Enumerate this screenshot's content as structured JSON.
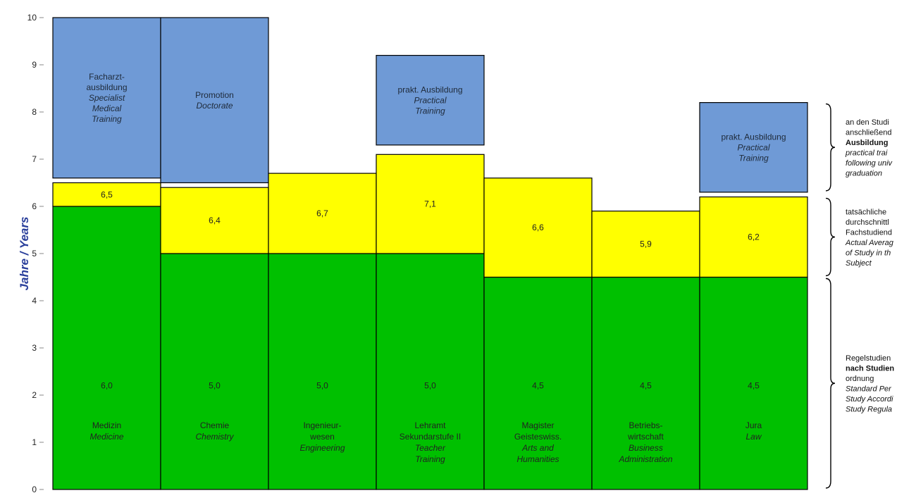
{
  "chart_data": {
    "type": "bar",
    "stacked": true,
    "ylabel": "Jahre / Years",
    "ylim": [
      0,
      10
    ],
    "yticks": [
      "0",
      "1",
      "2",
      "3",
      "4",
      "5",
      "6",
      "7",
      "8",
      "9",
      "10"
    ],
    "grid": false,
    "categories": [
      {
        "de": [
          "Medizin"
        ],
        "en": [
          "Medicine"
        ]
      },
      {
        "de": [
          "Chemie"
        ],
        "en": [
          "Chemistry"
        ]
      },
      {
        "de": [
          "Ingenieur-",
          "wesen"
        ],
        "en": [
          "Engineering"
        ]
      },
      {
        "de": [
          "Lehramt",
          "Sekundarstufe II"
        ],
        "en": [
          "Teacher",
          "Training"
        ]
      },
      {
        "de": [
          "Magister",
          "Geisteswiss."
        ],
        "en": [
          "Arts and",
          "Humanities"
        ]
      },
      {
        "de": [
          "Betriebs-",
          "wirtschaft"
        ],
        "en": [
          "Business",
          "Administration"
        ]
      },
      {
        "de": [
          "Jura"
        ],
        "en": [
          "Law"
        ]
      }
    ],
    "series": [
      {
        "key": "standard",
        "color": "#00c000",
        "values": [
          6.0,
          5.0,
          5.0,
          5.0,
          4.5,
          4.5,
          4.5
        ],
        "labels": [
          "6,0",
          "5,0",
          "5,0",
          "5,0",
          "4,5",
          "4,5",
          "4,5"
        ]
      },
      {
        "key": "actual",
        "color": "#ffff00",
        "totals": [
          6.5,
          6.4,
          6.7,
          7.1,
          6.6,
          5.9,
          6.2
        ],
        "labels": [
          "6,5",
          "6,4",
          "6,7",
          "7,1",
          "6,6",
          "5,9",
          "6,2"
        ]
      },
      {
        "key": "training",
        "color": "#6f9ad6",
        "ranges": [
          {
            "from": 6.6,
            "to": 10.0
          },
          {
            "from": 6.5,
            "to": 10.0
          },
          null,
          {
            "from": 7.3,
            "to": 9.2
          },
          null,
          null,
          {
            "from": 6.3,
            "to": 8.2
          }
        ],
        "labels": [
          {
            "de": [
              "Facharzt-",
              "ausbildung"
            ],
            "en": [
              "Specialist",
              "Medical",
              "Training"
            ]
          },
          {
            "de": [
              "Promotion"
            ],
            "en": [
              "Doctorate"
            ]
          },
          null,
          {
            "de": [
              "prakt. Ausbildung"
            ],
            "en": [
              "Practical",
              "Training"
            ]
          },
          null,
          null,
          {
            "de": [
              "prakt. Ausbildung"
            ],
            "en": [
              "Practical",
              "Training"
            ]
          }
        ]
      }
    ],
    "legend": [
      {
        "range": [
          6.3,
          8.2
        ],
        "lines": [
          {
            "text": "an den Studi",
            "style": "de"
          },
          {
            "text": "anschließend",
            "style": "de"
          },
          {
            "text": "Ausbildung",
            "style": "de-strong"
          },
          {
            "text": "practical trai",
            "style": "en"
          },
          {
            "text": "following univ",
            "style": "en"
          },
          {
            "text": "graduation",
            "style": "en"
          }
        ]
      },
      {
        "range": [
          4.5,
          6.2
        ],
        "lines": [
          {
            "text": "tatsächliche",
            "style": "de"
          },
          {
            "text": "durchschnittl",
            "style": "de"
          },
          {
            "text": "Fachstudiend",
            "style": "de"
          },
          {
            "text": "Actual Averag",
            "style": "en"
          },
          {
            "text": "of Study in th",
            "style": "en"
          },
          {
            "text": "Subject",
            "style": "en"
          }
        ]
      },
      {
        "range": [
          0,
          4.5
        ],
        "lines": [
          {
            "text": "Regelstudien",
            "style": "de"
          },
          {
            "text": "nach Studien",
            "style": "de-strong"
          },
          {
            "text": "ordnung",
            "style": "de"
          },
          {
            "text": "Standard Per",
            "style": "en"
          },
          {
            "text": "Study Accordi",
            "style": "en"
          },
          {
            "text": "Study Regula",
            "style": "en"
          }
        ]
      }
    ]
  }
}
